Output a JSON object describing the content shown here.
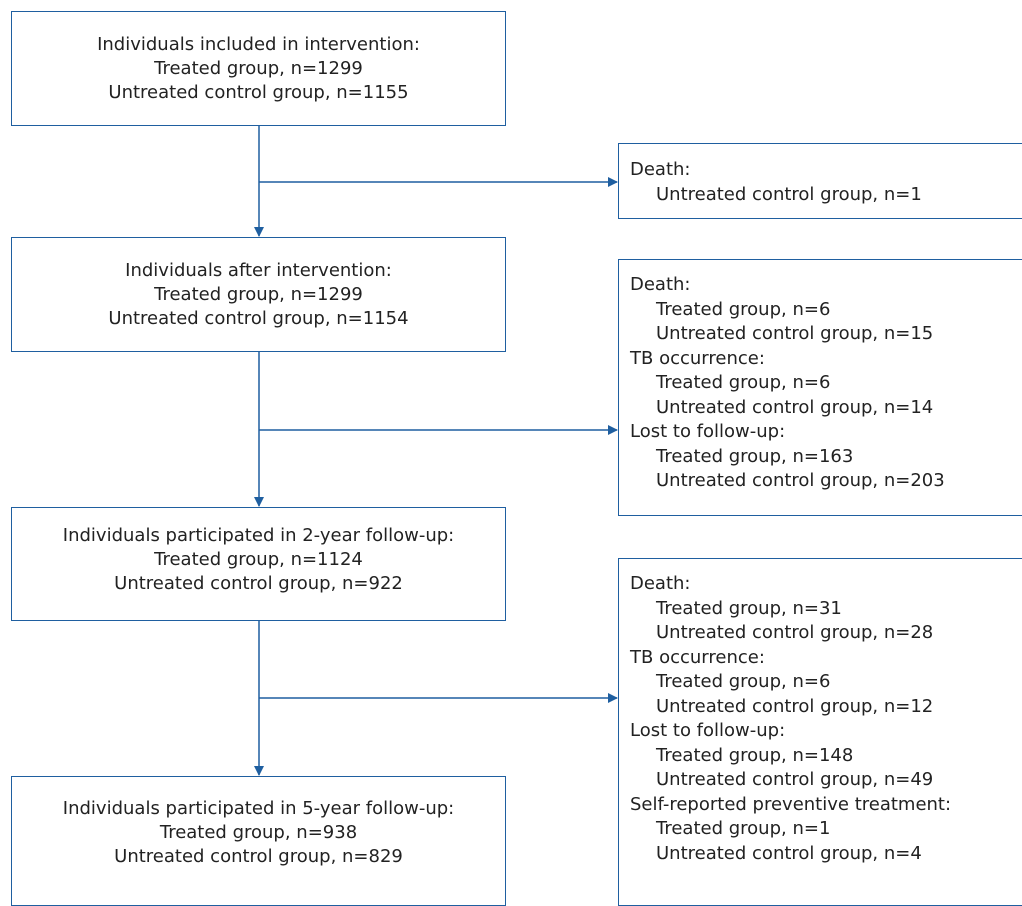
{
  "main_boxes": [
    {
      "title": "Individuals included in intervention:",
      "treated": "Treated group, n=1299",
      "control": "Untreated control group, n=1155"
    },
    {
      "title": "Individuals after intervention:",
      "treated": "Treated group, n=1299",
      "control": "Untreated control group, n=1154"
    },
    {
      "title": "Individuals participated in 2-year follow-up:",
      "treated": "Treated group, n=1124",
      "control": "Untreated control group, n=922"
    },
    {
      "title": "Individuals participated in 5-year follow-up:",
      "treated": "Treated group, n=938",
      "control": "Untreated control group, n=829"
    }
  ],
  "exclusion_boxes": [
    {
      "groups": [
        {
          "heading": "Death:",
          "items": [
            "Untreated control group, n=1"
          ]
        }
      ]
    },
    {
      "groups": [
        {
          "heading": "Death:",
          "items": [
            "Treated group, n=6",
            "Untreated control group, n=15"
          ]
        },
        {
          "heading": "TB occurrence:",
          "items": [
            "Treated group, n=6",
            "Untreated control group, n=14"
          ]
        },
        {
          "heading": "Lost to follow-up:",
          "items": [
            "Treated group, n=163",
            "Untreated control group, n=203"
          ]
        }
      ]
    },
    {
      "groups": [
        {
          "heading": "Death:",
          "items": [
            "Treated group, n=31",
            "Untreated control group, n=28"
          ]
        },
        {
          "heading": "TB occurrence:",
          "items": [
            "Treated group, n=6",
            "Untreated control group, n=12"
          ]
        },
        {
          "heading": "Lost to follow-up:",
          "items": [
            "Treated group, n=148",
            "Untreated control group, n=49"
          ]
        },
        {
          "heading": "Self-reported preventive treatment:",
          "items": [
            "Treated group, n=1",
            "Untreated control group, n=4"
          ]
        }
      ]
    }
  ],
  "colors": {
    "line": "#1f5fa0",
    "text": "#222222"
  }
}
